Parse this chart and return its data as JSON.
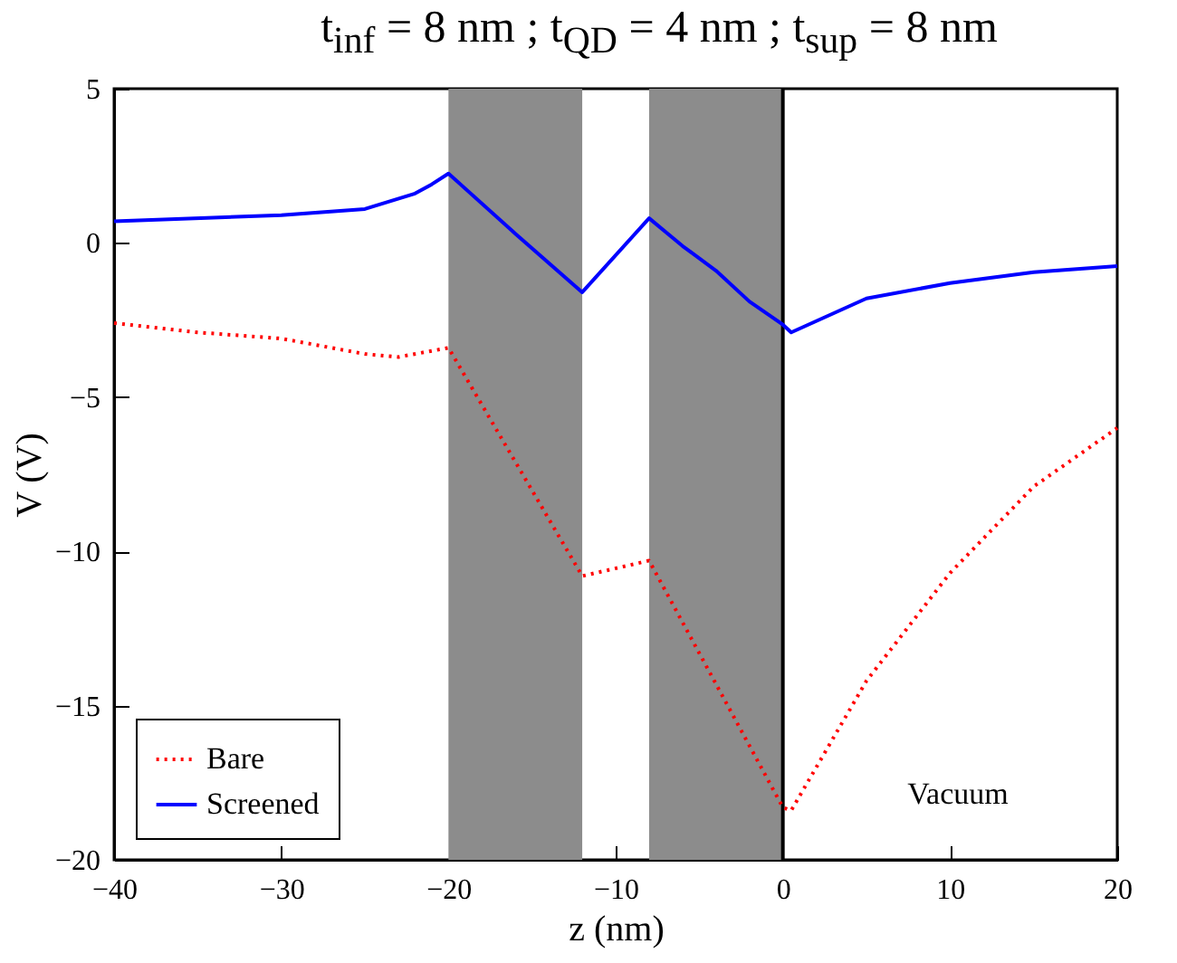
{
  "chart_data": {
    "type": "line",
    "title": "t$_{inf}$ = 8 nm ; t$_{QD}$ = 4 nm ; t$_{sup}$ = 8 nm",
    "xlabel": "z (nm)",
    "ylabel": "V (V)",
    "series": [
      {
        "name": "Bare",
        "color": "#ff0000",
        "line_style": "dotted",
        "x": [
          -40,
          -35,
          -30,
          -25,
          -23,
          -20,
          -12,
          -8,
          0,
          0.5,
          2,
          5,
          10,
          15,
          20
        ],
        "values": [
          -2.6,
          -2.9,
          -3.1,
          -3.6,
          -3.7,
          -3.4,
          -10.8,
          -10.3,
          -18.3,
          -18.4,
          -17.0,
          -14.2,
          -10.7,
          -7.9,
          -6.0
        ]
      },
      {
        "name": "Screened",
        "color": "#0000ff",
        "line_style": "solid",
        "x": [
          -40,
          -30,
          -25,
          -22,
          -21,
          -20,
          -16,
          -12,
          -8,
          -6,
          -4,
          -2,
          0,
          0.5,
          5,
          10,
          15,
          20
        ],
        "values": [
          0.7,
          0.9,
          1.1,
          1.6,
          1.9,
          2.25,
          0.3,
          -1.6,
          0.8,
          -0.1,
          -0.9,
          -1.9,
          -2.65,
          -2.9,
          -1.8,
          -1.3,
          -0.95,
          -0.75
        ]
      }
    ],
    "xlim": [
      -40,
      20
    ],
    "xticks": [
      -40,
      -30,
      -20,
      -10,
      0,
      10,
      20
    ],
    "ylim": [
      -20,
      5
    ],
    "yticks": [
      -20,
      -15,
      -10,
      -5,
      0,
      5
    ],
    "bands": [
      {
        "axis": "x",
        "from": -20,
        "to": -12,
        "color": "#8c8c8c"
      },
      {
        "axis": "x",
        "from": -8,
        "to": 0,
        "color": "#8c8c8c"
      }
    ],
    "ref_lines": [
      {
        "axis": "x",
        "value": 0,
        "color": "#000000"
      }
    ],
    "annotations": [
      "Vacuum"
    ],
    "grid": false,
    "legend": "bottom left",
    "marker": "none"
  }
}
